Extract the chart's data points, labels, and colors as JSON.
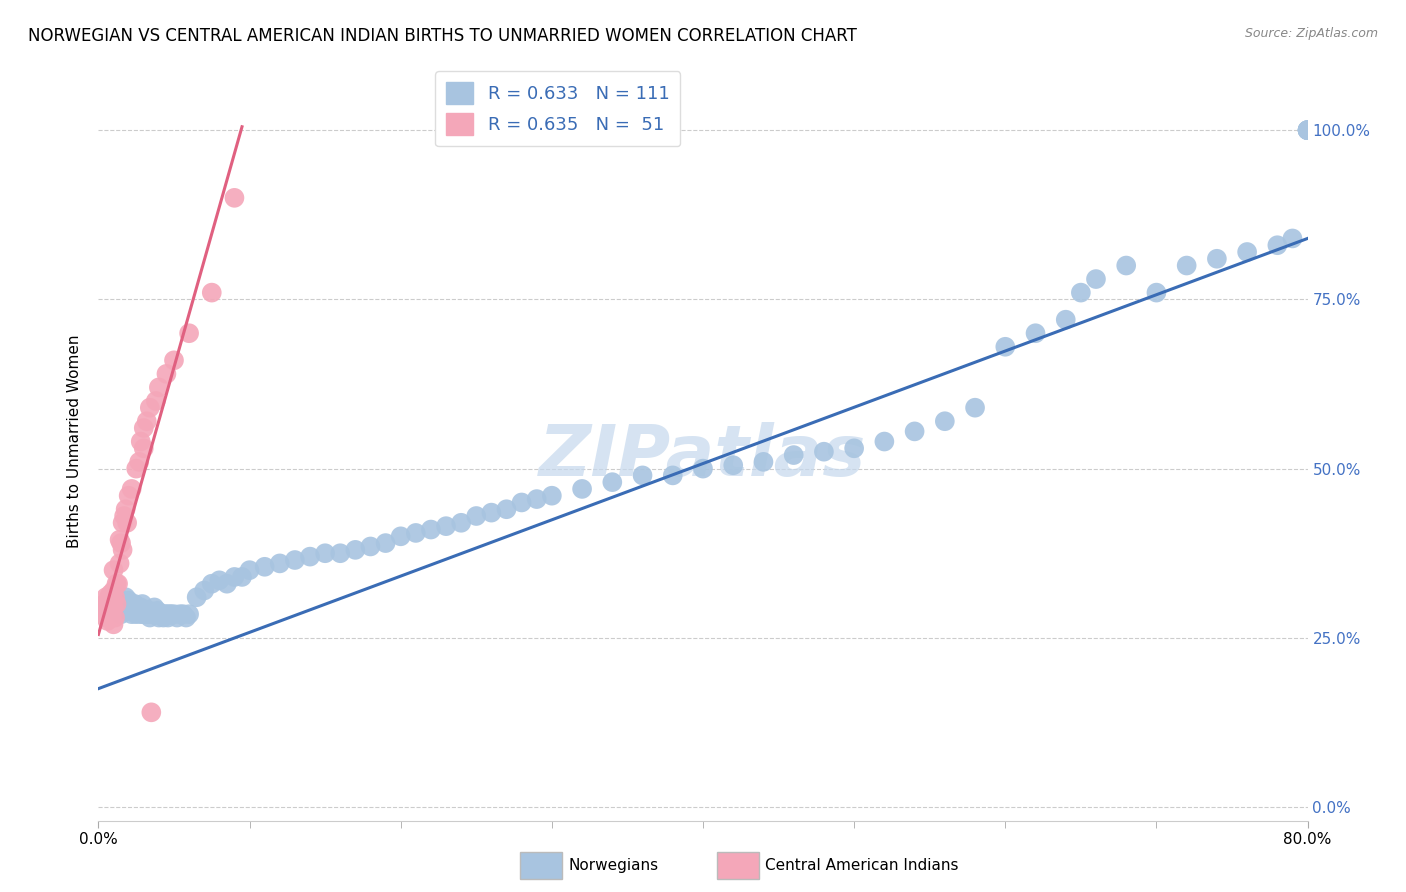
{
  "title": "NORWEGIAN VS CENTRAL AMERICAN INDIAN BIRTHS TO UNMARRIED WOMEN CORRELATION CHART",
  "source": "Source: ZipAtlas.com",
  "ylabel": "Births to Unmarried Women",
  "xlim": [
    0.0,
    0.8
  ],
  "ylim": [
    -0.02,
    1.1
  ],
  "blue_color": "#a8c4e0",
  "pink_color": "#f4a7b9",
  "blue_line_color": "#3a6cb5",
  "pink_line_color": "#e06080",
  "watermark": "ZIPatlas",
  "background_color": "#ffffff",
  "grid_color": "#cccccc",
  "watermark_color": "#c5d8ed",
  "right_tick_color": "#4472c4",
  "blue_x": [
    0.005,
    0.008,
    0.01,
    0.012,
    0.012,
    0.013,
    0.014,
    0.015,
    0.016,
    0.017,
    0.018,
    0.018,
    0.019,
    0.02,
    0.02,
    0.021,
    0.022,
    0.022,
    0.023,
    0.024,
    0.025,
    0.026,
    0.027,
    0.028,
    0.028,
    0.029,
    0.03,
    0.031,
    0.032,
    0.033,
    0.034,
    0.034,
    0.035,
    0.036,
    0.037,
    0.038,
    0.039,
    0.04,
    0.041,
    0.042,
    0.043,
    0.044,
    0.045,
    0.046,
    0.047,
    0.048,
    0.05,
    0.052,
    0.054,
    0.056,
    0.058,
    0.06,
    0.065,
    0.07,
    0.075,
    0.08,
    0.085,
    0.09,
    0.095,
    0.1,
    0.11,
    0.12,
    0.13,
    0.14,
    0.15,
    0.16,
    0.17,
    0.18,
    0.19,
    0.2,
    0.21,
    0.22,
    0.23,
    0.24,
    0.25,
    0.26,
    0.27,
    0.28,
    0.29,
    0.3,
    0.32,
    0.34,
    0.36,
    0.38,
    0.4,
    0.42,
    0.44,
    0.46,
    0.48,
    0.5,
    0.52,
    0.54,
    0.56,
    0.58,
    0.6,
    0.62,
    0.64,
    0.65,
    0.66,
    0.68,
    0.7,
    0.72,
    0.74,
    0.76,
    0.78,
    0.79,
    0.8,
    0.8,
    0.8,
    0.8,
    0.8
  ],
  "blue_y": [
    0.295,
    0.31,
    0.3,
    0.29,
    0.3,
    0.31,
    0.295,
    0.285,
    0.295,
    0.3,
    0.3,
    0.31,
    0.295,
    0.29,
    0.305,
    0.295,
    0.285,
    0.295,
    0.295,
    0.3,
    0.285,
    0.29,
    0.295,
    0.285,
    0.295,
    0.3,
    0.285,
    0.29,
    0.285,
    0.29,
    0.28,
    0.29,
    0.285,
    0.285,
    0.295,
    0.285,
    0.29,
    0.28,
    0.285,
    0.285,
    0.28,
    0.285,
    0.285,
    0.28,
    0.285,
    0.285,
    0.285,
    0.28,
    0.285,
    0.285,
    0.28,
    0.285,
    0.31,
    0.32,
    0.33,
    0.335,
    0.33,
    0.34,
    0.34,
    0.35,
    0.355,
    0.36,
    0.365,
    0.37,
    0.375,
    0.375,
    0.38,
    0.385,
    0.39,
    0.4,
    0.405,
    0.41,
    0.415,
    0.42,
    0.43,
    0.435,
    0.44,
    0.45,
    0.455,
    0.46,
    0.47,
    0.48,
    0.49,
    0.49,
    0.5,
    0.505,
    0.51,
    0.52,
    0.525,
    0.53,
    0.54,
    0.555,
    0.57,
    0.59,
    0.68,
    0.7,
    0.72,
    0.76,
    0.78,
    0.8,
    0.76,
    0.8,
    0.81,
    0.82,
    0.83,
    0.84,
    1.0,
    1.0,
    1.0,
    1.0,
    1.0
  ],
  "pink_x": [
    0.002,
    0.003,
    0.004,
    0.004,
    0.005,
    0.005,
    0.005,
    0.006,
    0.006,
    0.007,
    0.007,
    0.007,
    0.008,
    0.008,
    0.008,
    0.009,
    0.009,
    0.01,
    0.01,
    0.01,
    0.01,
    0.011,
    0.011,
    0.012,
    0.012,
    0.013,
    0.014,
    0.014,
    0.015,
    0.016,
    0.016,
    0.017,
    0.018,
    0.019,
    0.02,
    0.022,
    0.025,
    0.027,
    0.028,
    0.03,
    0.03,
    0.032,
    0.034,
    0.035,
    0.038,
    0.04,
    0.045,
    0.05,
    0.06,
    0.075,
    0.09
  ],
  "pink_y": [
    0.29,
    0.295,
    0.29,
    0.3,
    0.28,
    0.295,
    0.31,
    0.275,
    0.29,
    0.28,
    0.295,
    0.31,
    0.28,
    0.295,
    0.315,
    0.28,
    0.31,
    0.27,
    0.295,
    0.32,
    0.35,
    0.28,
    0.31,
    0.3,
    0.33,
    0.33,
    0.36,
    0.395,
    0.39,
    0.38,
    0.42,
    0.43,
    0.44,
    0.42,
    0.46,
    0.47,
    0.5,
    0.51,
    0.54,
    0.53,
    0.56,
    0.57,
    0.59,
    0.14,
    0.6,
    0.62,
    0.64,
    0.66,
    0.7,
    0.76,
    0.9
  ],
  "blue_line_x": [
    0.0,
    0.8
  ],
  "blue_line_y": [
    0.175,
    0.84
  ],
  "pink_line_x": [
    0.0,
    0.095
  ],
  "pink_line_y": [
    0.255,
    1.005
  ],
  "ytick_vals": [
    0.0,
    0.25,
    0.5,
    0.75,
    1.0
  ],
  "ytick_labels": [
    "0.0%",
    "25.0%",
    "50.0%",
    "75.0%",
    "100.0%"
  ],
  "xtick_vals": [
    0.0,
    0.8
  ],
  "xtick_labels": [
    "0.0%",
    "80.0%"
  ]
}
